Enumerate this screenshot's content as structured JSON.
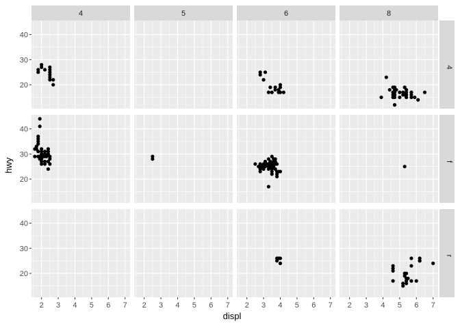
{
  "chart_data": {
    "type": "scatter",
    "facet_type": "grid",
    "xlabel": "displ",
    "ylabel": "hwy",
    "cols": [
      "4",
      "5",
      "6",
      "8"
    ],
    "rows": [
      "4",
      "f",
      "r"
    ],
    "xlim": [
      1.4,
      7.3
    ],
    "ylim": [
      10.5,
      45.6
    ],
    "xticks": [
      2,
      3,
      4,
      5,
      6,
      7
    ],
    "yticks": [
      20,
      30,
      40
    ],
    "grid": true,
    "panel_background": "#ebebeb",
    "strip_background": "#d9d9d9",
    "point_color": "#000000",
    "panels": [
      {
        "row": "4",
        "col": "4",
        "points": [
          [
            1.8,
            26
          ],
          [
            1.8,
            25
          ],
          [
            2,
            28
          ],
          [
            2,
            27
          ],
          [
            2.2,
            26
          ],
          [
            2.5,
            27
          ],
          [
            2.5,
            26
          ],
          [
            2.5,
            25
          ],
          [
            2.5,
            24
          ],
          [
            2.5,
            23
          ],
          [
            2.5,
            22
          ],
          [
            2.7,
            22
          ],
          [
            2.7,
            20
          ]
        ]
      },
      {
        "row": "4",
        "col": "5",
        "points": []
      },
      {
        "row": "4",
        "col": "6",
        "points": [
          [
            2.8,
            25
          ],
          [
            2.8,
            24
          ],
          [
            3,
            22
          ],
          [
            3.1,
            25
          ],
          [
            3.3,
            17
          ],
          [
            3.4,
            19
          ],
          [
            3.5,
            17
          ],
          [
            3.7,
            19
          ],
          [
            3.7,
            18
          ],
          [
            3.9,
            17
          ],
          [
            3.9,
            18
          ],
          [
            4,
            17
          ],
          [
            4,
            19
          ],
          [
            4,
            20
          ],
          [
            4.2,
            17
          ]
        ]
      },
      {
        "row": "4",
        "col": "8",
        "points": [
          [
            3.9,
            15
          ],
          [
            4.2,
            23
          ],
          [
            4.4,
            18
          ],
          [
            4.6,
            17
          ],
          [
            4.6,
            19
          ],
          [
            4.6,
            16
          ],
          [
            4.7,
            17
          ],
          [
            4.7,
            19
          ],
          [
            4.7,
            16
          ],
          [
            4.7,
            15
          ],
          [
            4.7,
            12
          ],
          [
            4.8,
            18
          ],
          [
            5,
            17
          ],
          [
            5,
            15
          ],
          [
            5.2,
            17
          ],
          [
            5.3,
            19
          ],
          [
            5.3,
            16
          ],
          [
            5.4,
            17
          ],
          [
            5.4,
            15
          ],
          [
            5.4,
            18
          ],
          [
            5.7,
            17
          ],
          [
            5.7,
            15
          ],
          [
            5.9,
            15
          ],
          [
            6.1,
            14
          ],
          [
            6.5,
            17
          ],
          [
            4.7,
            18
          ],
          [
            5.2,
            16
          ],
          [
            4.6,
            15
          ],
          [
            5.4,
            16
          ],
          [
            5.7,
            16
          ]
        ]
      },
      {
        "row": "f",
        "col": "4",
        "points": [
          [
            1.6,
            29
          ],
          [
            1.6,
            32
          ],
          [
            1.7,
            33
          ],
          [
            1.8,
            29
          ],
          [
            1.8,
            34
          ],
          [
            1.8,
            36
          ],
          [
            1.8,
            35
          ],
          [
            1.8,
            37
          ],
          [
            1.9,
            44
          ],
          [
            1.9,
            41
          ],
          [
            1.9,
            29
          ],
          [
            2,
            26
          ],
          [
            2,
            29
          ],
          [
            2,
            28
          ],
          [
            2,
            30
          ],
          [
            2,
            31
          ],
          [
            2,
            27
          ],
          [
            2.2,
            29
          ],
          [
            2.2,
            27
          ],
          [
            2.2,
            30
          ],
          [
            2.2,
            31
          ],
          [
            2.2,
            26
          ],
          [
            2.4,
            27
          ],
          [
            2.4,
            30
          ],
          [
            2.4,
            24
          ],
          [
            2.4,
            31
          ],
          [
            2.4,
            32
          ],
          [
            2.5,
            29
          ],
          [
            2.5,
            28
          ],
          [
            2.5,
            26
          ],
          [
            1.7,
            32
          ],
          [
            1.8,
            31
          ],
          [
            1.9,
            28
          ],
          [
            2.1,
            29
          ],
          [
            2.3,
            29
          ],
          [
            2,
            32
          ]
        ]
      },
      {
        "row": "f",
        "col": "5",
        "points": [
          [
            2.5,
            29
          ],
          [
            2.5,
            28
          ]
        ]
      },
      {
        "row": "f",
        "col": "6",
        "points": [
          [
            2.5,
            26
          ],
          [
            2.7,
            25
          ],
          [
            2.8,
            26
          ],
          [
            2.8,
            24
          ],
          [
            2.8,
            23
          ],
          [
            3,
            26
          ],
          [
            3,
            24
          ],
          [
            3.1,
            27
          ],
          [
            3.1,
            26
          ],
          [
            3.1,
            25
          ],
          [
            3.3,
            24
          ],
          [
            3.3,
            26
          ],
          [
            3.3,
            28
          ],
          [
            3.3,
            25
          ],
          [
            3.3,
            17
          ],
          [
            3.4,
            27
          ],
          [
            3.5,
            26
          ],
          [
            3.5,
            29
          ],
          [
            3.5,
            24
          ],
          [
            3.5,
            23
          ],
          [
            3.5,
            22
          ],
          [
            3.6,
            28
          ],
          [
            3.6,
            27
          ],
          [
            3.6,
            26
          ],
          [
            3.6,
            25
          ],
          [
            3.7,
            26
          ],
          [
            3.7,
            27
          ],
          [
            3.7,
            28
          ],
          [
            3.7,
            24
          ],
          [
            3.8,
            26
          ],
          [
            3.8,
            23
          ],
          [
            3.8,
            22
          ],
          [
            3.8,
            21
          ],
          [
            3.9,
            23
          ],
          [
            4,
            23
          ],
          [
            2.9,
            25
          ],
          [
            3.2,
            26
          ],
          [
            3.4,
            25
          ]
        ]
      },
      {
        "row": "f",
        "col": "8",
        "points": [
          [
            5.3,
            25
          ]
        ]
      },
      {
        "row": "r",
        "col": "4",
        "points": []
      },
      {
        "row": "r",
        "col": "5",
        "points": []
      },
      {
        "row": "r",
        "col": "6",
        "points": [
          [
            3.8,
            26
          ],
          [
            3.8,
            25
          ],
          [
            3.9,
            26
          ],
          [
            4,
            24
          ],
          [
            4,
            26
          ]
        ]
      },
      {
        "row": "r",
        "col": "8",
        "points": [
          [
            4.6,
            17
          ],
          [
            4.6,
            21
          ],
          [
            4.6,
            22
          ],
          [
            4.6,
            23
          ],
          [
            5.2,
            16
          ],
          [
            5.2,
            15
          ],
          [
            5.3,
            20
          ],
          [
            5.4,
            18
          ],
          [
            5.4,
            17
          ],
          [
            5.4,
            20
          ],
          [
            5.5,
            18
          ],
          [
            5.7,
            26
          ],
          [
            5.7,
            23
          ],
          [
            5.7,
            17
          ],
          [
            6,
            17
          ],
          [
            6.2,
            26
          ],
          [
            6.2,
            25
          ],
          [
            7,
            24
          ],
          [
            5.3,
            19
          ],
          [
            5.4,
            16
          ],
          [
            6.2,
            25
          ]
        ]
      }
    ]
  }
}
